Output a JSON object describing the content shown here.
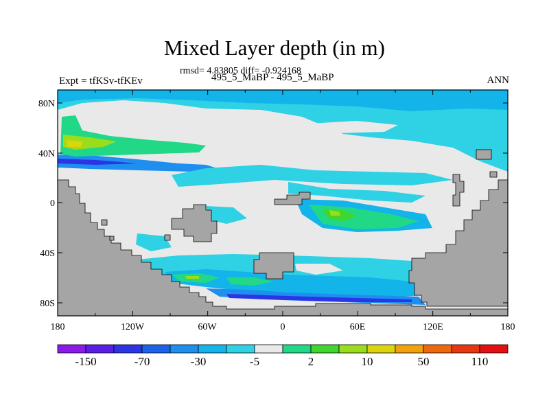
{
  "title": "Mixed Layer depth (in m)",
  "stats_line": "rmsd= 4.83805 diff= -0.924168",
  "experiment_label": "Expt = tfKSv-tfKEv",
  "case_label": "495_5_MaBP - 495_5_MaBP",
  "season_label": "ANN",
  "lat_ticks": [
    "80N",
    "40N",
    "0",
    "40S",
    "80S"
  ],
  "lon_ticks": [
    "180",
    "120W",
    "60W",
    "0",
    "60E",
    "120E",
    "180"
  ],
  "colorbar": {
    "colors": [
      "#8b1ae8",
      "#5b1ee6",
      "#2b35e6",
      "#1d63ea",
      "#1e8fee",
      "#12b4ea",
      "#2fd1e4",
      "#e9e9e9",
      "#20d886",
      "#3fd62e",
      "#9bdd1a",
      "#dcd50c",
      "#f1a10b",
      "#ee690c",
      "#e73710",
      "#e40f12"
    ],
    "labels": [
      "-150",
      "-70",
      "-30",
      "-5",
      "2",
      "10",
      "50",
      "110"
    ]
  },
  "legend_colors": {
    "land": "#a5a5a5",
    "neutral": "#e9e9e9",
    "light_blue": "#2fd1e4",
    "medium_blue": "#12b4ea",
    "blue": "#1e8fee",
    "dark_blue": "#2b35e6",
    "light_green": "#20d886",
    "green": "#3fd62e",
    "yellow_green": "#9bdd1a",
    "yellow": "#dcd50c"
  }
}
